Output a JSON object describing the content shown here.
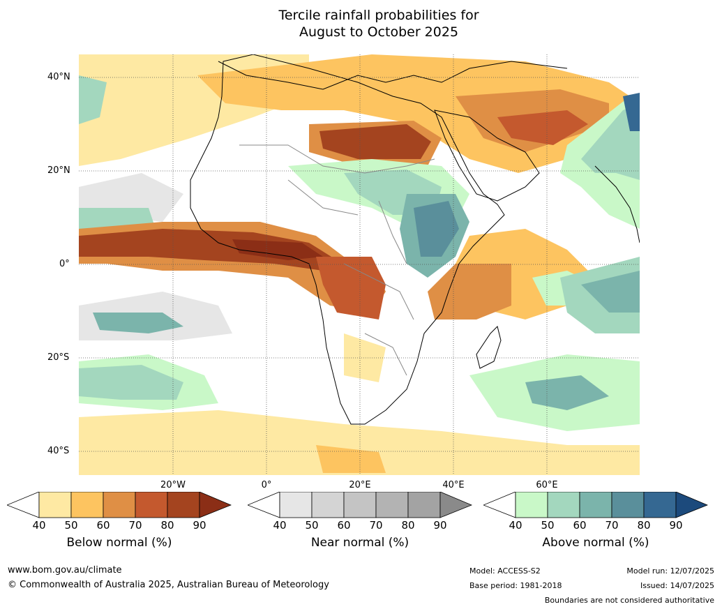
{
  "title": {
    "line1": "Tercile rainfall probabilities for",
    "line2": "August to October 2025"
  },
  "map": {
    "lat_labels": [
      "40°N",
      "20°N",
      "0°",
      "20°S",
      "40°S"
    ],
    "lon_labels": [
      "20°W",
      "0°",
      "20°E",
      "40°E",
      "60°E"
    ]
  },
  "colorbars": [
    {
      "label": "Below normal (%)",
      "ticks": [
        "40",
        "50",
        "60",
        "70",
        "80",
        "90"
      ],
      "colors": [
        "#ffffff",
        "#fee9a3",
        "#fdc460",
        "#df8f45",
        "#c4592e",
        "#a4441f",
        "#8b2e16"
      ]
    },
    {
      "label": "Near normal (%)",
      "ticks": [
        "40",
        "50",
        "60",
        "70",
        "80",
        "90"
      ],
      "colors": [
        "#ffffff",
        "#e6e6e6",
        "#d4d4d4",
        "#c4c4c4",
        "#b3b3b3",
        "#a3a3a3",
        "#8a8a8a"
      ]
    },
    {
      "label": "Above normal (%)",
      "ticks": [
        "40",
        "50",
        "60",
        "70",
        "80",
        "90"
      ],
      "colors": [
        "#ffffff",
        "#c9f8c8",
        "#a3d7be",
        "#7bb4ab",
        "#5a8f9b",
        "#356892",
        "#1c4a7c"
      ]
    }
  ],
  "footer": {
    "website": "www.bom.gov.au/climate",
    "copyright": "© Commonwealth of Australia 2025, Australian Bureau of Meteorology",
    "model": "Model: ACCESS-S2",
    "base_period": "Base period: 1981-2018",
    "model_run": "Model run: 12/07/2025",
    "issued": "Issued: 14/07/2025",
    "boundaries": "Boundaries are not considered authoritative"
  }
}
